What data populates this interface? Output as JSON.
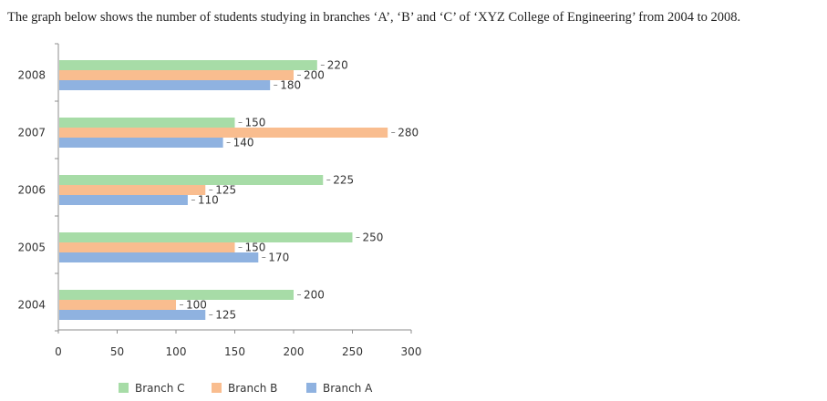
{
  "caption": "The graph below shows the number of students studying in branches ‘A’, ‘B’ and ‘C’ of ‘XYZ College of Engineering’ from 2004 to 2008.",
  "chart_data": {
    "type": "bar",
    "orientation": "horizontal",
    "title": "",
    "xlabel": "",
    "ylabel": "",
    "categories": [
      "2008",
      "2007",
      "2006",
      "2005",
      "2004"
    ],
    "series": [
      {
        "name": "Branch C",
        "color": "#a7dca7",
        "values": [
          220,
          150,
          225,
          250,
          200
        ]
      },
      {
        "name": "Branch B",
        "color": "#f9bd8f",
        "values": [
          200,
          280,
          125,
          150,
          100
        ]
      },
      {
        "name": "Branch A",
        "color": "#8fb2e0",
        "values": [
          180,
          140,
          110,
          170,
          125
        ]
      }
    ],
    "xlim": [
      0,
      300
    ],
    "x_ticks": [
      "0",
      "50",
      "100",
      "150",
      "200",
      "250",
      "300"
    ],
    "grid": false,
    "legend_position": "bottom"
  }
}
